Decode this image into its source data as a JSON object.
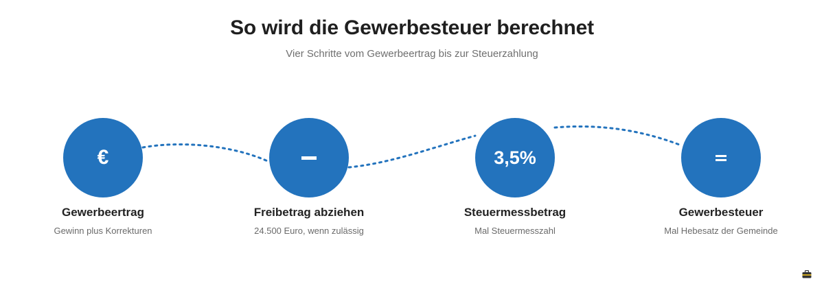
{
  "header": {
    "title": "So wird die Gewerbesteuer berechnet",
    "subtitle": "Vier Schritte vom Gewerbeertrag bis zur Steuerzahlung"
  },
  "colors": {
    "accent": "#2373bd",
    "connector": "#2373bd",
    "text_dark": "#222222",
    "text_muted": "#6a6a6a"
  },
  "steps": [
    {
      "symbol": "€",
      "label": "Gewerbeertrag",
      "description": "Gewinn plus Korrekturen"
    },
    {
      "symbol_icon": "minus-icon",
      "label": "Freibetrag abziehen",
      "description": "24.500 Euro, wenn zulässig"
    },
    {
      "symbol": "3,5%",
      "label": "Steuermessbetrag",
      "description": "Mal Steuermesszahl"
    },
    {
      "symbol_icon": "equals-icon",
      "label": "Gewerbesteuer",
      "description": "Mal Hebesatz der Gemeinde"
    }
  ],
  "corner_icon": "briefcase-icon"
}
